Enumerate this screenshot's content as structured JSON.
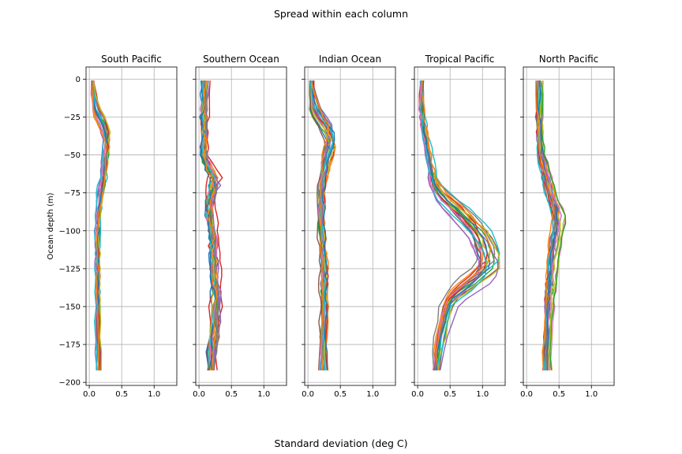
{
  "figure": {
    "suptitle": "Spread within each column",
    "xlabel": "Standard deviation (deg C)",
    "ylabel": "Ocean depth (m)"
  },
  "chart_data": {
    "type": "line",
    "xlim": [
      -0.05,
      1.35
    ],
    "ylim": [
      -202,
      8
    ],
    "xticks": [
      0.0,
      0.5,
      1.0
    ],
    "xtick_labels": [
      "0.0",
      "0.5",
      "1.0"
    ],
    "yticks": [
      0,
      -25,
      -50,
      -75,
      -100,
      -125,
      -150,
      -175,
      -200
    ],
    "ytick_labels": [
      "0",
      "−25",
      "−50",
      "−75",
      "−100",
      "−125",
      "−150",
      "−175",
      "−200"
    ],
    "grid": true,
    "sharey": true,
    "depths": [
      -1,
      -10,
      -20,
      -25,
      -30,
      -35,
      -40,
      -45,
      -50,
      -55,
      -60,
      -65,
      -70,
      -75,
      -80,
      -85,
      -90,
      -95,
      -100,
      -105,
      -110,
      -115,
      -120,
      -125,
      -130,
      -135,
      -140,
      -145,
      -150,
      -160,
      -170,
      -180,
      -192
    ],
    "colors": [
      "#1f77b4",
      "#ff7f0e",
      "#2ca02c",
      "#d62728",
      "#9467bd",
      "#8c564b",
      "#e377c2",
      "#7f7f7f",
      "#bcbd22",
      "#17becf"
    ],
    "panels": [
      {
        "title": "South Pacific",
        "n_lines": 22,
        "profile": [
          0.05,
          0.05,
          0.08,
          0.14,
          0.2,
          0.24,
          0.26,
          0.26,
          0.25,
          0.24,
          0.23,
          0.22,
          0.2,
          0.18,
          0.16,
          0.15,
          0.14,
          0.14,
          0.13,
          0.13,
          0.13,
          0.13,
          0.13,
          0.13,
          0.13,
          0.13,
          0.13,
          0.13,
          0.13,
          0.13,
          0.13,
          0.14,
          0.15
        ],
        "spread": 0.04
      },
      {
        "title": "Southern Ocean",
        "n_lines": 22,
        "profile": [
          0.09,
          0.09,
          0.09,
          0.09,
          0.09,
          0.09,
          0.09,
          0.09,
          0.1,
          0.14,
          0.22,
          0.25,
          0.22,
          0.19,
          0.17,
          0.17,
          0.18,
          0.2,
          0.22,
          0.23,
          0.24,
          0.24,
          0.24,
          0.24,
          0.25,
          0.26,
          0.27,
          0.27,
          0.27,
          0.25,
          0.22,
          0.2,
          0.18
        ],
        "spread": 0.08
      },
      {
        "title": "Indian Ocean",
        "n_lines": 22,
        "profile": [
          0.06,
          0.06,
          0.12,
          0.2,
          0.28,
          0.34,
          0.36,
          0.34,
          0.3,
          0.27,
          0.25,
          0.23,
          0.22,
          0.21,
          0.21,
          0.21,
          0.21,
          0.21,
          0.22,
          0.22,
          0.23,
          0.24,
          0.25,
          0.25,
          0.25,
          0.25,
          0.25,
          0.25,
          0.25,
          0.25,
          0.24,
          0.24,
          0.24
        ],
        "spread": 0.05
      },
      {
        "title": "Tropical Pacific",
        "n_lines": 22,
        "profile": [
          0.06,
          0.06,
          0.06,
          0.07,
          0.08,
          0.1,
          0.12,
          0.14,
          0.16,
          0.18,
          0.2,
          0.22,
          0.26,
          0.32,
          0.42,
          0.55,
          0.68,
          0.8,
          0.9,
          0.97,
          1.02,
          1.06,
          1.08,
          1.06,
          0.95,
          0.8,
          0.65,
          0.52,
          0.45,
          0.4,
          0.35,
          0.3,
          0.27
        ],
        "spread": 0.05
      },
      {
        "title": "North Pacific",
        "n_lines": 22,
        "profile": [
          0.2,
          0.2,
          0.2,
          0.2,
          0.21,
          0.21,
          0.22,
          0.22,
          0.24,
          0.27,
          0.3,
          0.32,
          0.35,
          0.38,
          0.42,
          0.47,
          0.5,
          0.5,
          0.48,
          0.46,
          0.44,
          0.42,
          0.41,
          0.4,
          0.39,
          0.38,
          0.37,
          0.36,
          0.35,
          0.34,
          0.33,
          0.32,
          0.32
        ],
        "spread": 0.05
      }
    ]
  }
}
